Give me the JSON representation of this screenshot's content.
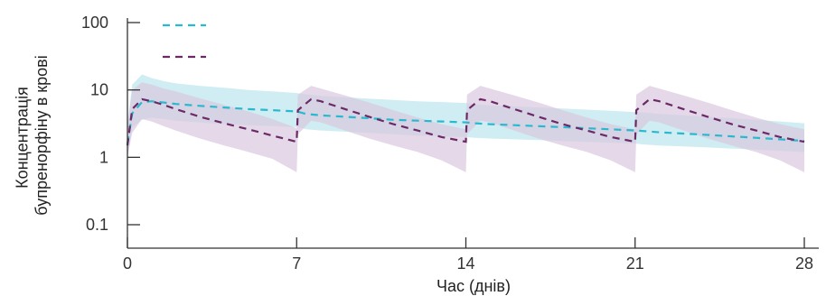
{
  "chart_data": {
    "type": "line",
    "title": "",
    "xlabel": "Час (днів)",
    "ylabel": [
      "Концентрація",
      "бупренорфіну в крові"
    ],
    "xlim": [
      0,
      28
    ],
    "ylim": [
      0.06,
      100
    ],
    "yscale": "log",
    "x_ticks": [
      0,
      7,
      14,
      21,
      28
    ],
    "y_ticks": [
      0.1,
      1,
      10,
      100
    ],
    "y_tick_labels": [
      "0.1",
      "1",
      "10",
      "100"
    ],
    "grid": false,
    "legend": {
      "placement": "top-left",
      "entries_text_shown": false
    },
    "series": [
      {
        "color": "#29b9cf",
        "band_color": "#bfe7ee",
        "style": "dashed",
        "x": [
          0,
          0.2,
          0.6,
          1.0,
          1.5,
          2,
          3,
          4,
          5,
          6,
          7,
          7.4,
          8,
          9,
          10,
          11,
          12,
          13,
          14,
          14.4,
          15,
          16,
          17,
          18,
          19,
          20,
          21,
          21.4,
          22,
          23,
          24,
          25,
          26,
          27,
          28
        ],
        "values": [
          1.6,
          4.5,
          6.6,
          6.8,
          6.5,
          6.2,
          5.8,
          5.5,
          5.2,
          5.0,
          4.8,
          4.4,
          4.2,
          4.0,
          3.8,
          3.6,
          3.5,
          3.4,
          3.3,
          3.2,
          3.1,
          3.0,
          2.9,
          2.8,
          2.7,
          2.6,
          2.5,
          2.45,
          2.35,
          2.25,
          2.15,
          2.05,
          1.95,
          1.85,
          1.75
        ],
        "band_upper": [
          3,
          12,
          17,
          15,
          13.5,
          12.5,
          11.5,
          10.8,
          10,
          9.5,
          9,
          8.6,
          8.2,
          7.8,
          7.4,
          7.1,
          6.8,
          6.6,
          6.4,
          6.1,
          5.9,
          5.7,
          5.5,
          5.3,
          5.1,
          4.9,
          4.7,
          4.6,
          4.4,
          4.2,
          4.0,
          3.8,
          3.6,
          3.4,
          3.2
        ],
        "band_lower": [
          1,
          2.8,
          3.6,
          3.9,
          3.7,
          3.5,
          3.3,
          3.1,
          3.0,
          2.9,
          2.8,
          2.6,
          2.5,
          2.4,
          2.3,
          2.2,
          2.1,
          2.05,
          2.0,
          1.95,
          1.9,
          1.85,
          1.8,
          1.75,
          1.7,
          1.65,
          1.6,
          1.55,
          1.5,
          1.45,
          1.4,
          1.35,
          1.3,
          1.25,
          1.2
        ]
      },
      {
        "color": "#6b2a66",
        "band_color": "#d9c7e0",
        "style": "dashed",
        "x": [
          0,
          0.2,
          0.6,
          1.0,
          1.5,
          2,
          3,
          4,
          5,
          6,
          7,
          7.05,
          7.6,
          8,
          9,
          10,
          11,
          12,
          13,
          14,
          14.05,
          14.6,
          15,
          16,
          17,
          18,
          19,
          20,
          21,
          21.05,
          21.6,
          22,
          23,
          24,
          25,
          26,
          27,
          28
        ],
        "values": [
          1.5,
          5.2,
          7.3,
          6.8,
          6.0,
          5.2,
          4.0,
          3.2,
          2.6,
          2.1,
          1.7,
          5.0,
          7.3,
          6.8,
          5.2,
          4.0,
          3.1,
          2.5,
          2.0,
          1.7,
          5.0,
          7.3,
          6.8,
          5.2,
          4.0,
          3.1,
          2.5,
          2.0,
          1.7,
          5.0,
          7.3,
          6.8,
          5.2,
          4.0,
          3.1,
          2.5,
          2.0,
          1.7
        ],
        "band_upper": [
          3,
          10,
          13,
          12,
          10.5,
          9.5,
          7.5,
          6,
          4.8,
          3.7,
          2.7,
          8.5,
          11.5,
          10.5,
          8.3,
          6.5,
          5,
          3.9,
          3.1,
          2.6,
          8.5,
          11.5,
          10.5,
          8.3,
          6.5,
          5,
          3.9,
          3.1,
          2.6,
          8.5,
          11.5,
          10.5,
          8.3,
          6.5,
          5,
          3.9,
          3.1,
          2.6
        ],
        "band_lower": [
          1,
          2.3,
          3.7,
          3.4,
          2.9,
          2.5,
          1.9,
          1.5,
          1.2,
          0.95,
          0.6,
          2.2,
          3.5,
          3.3,
          2.5,
          1.9,
          1.5,
          1.2,
          0.9,
          0.6,
          2.2,
          3.5,
          3.3,
          2.5,
          1.9,
          1.5,
          1.2,
          0.9,
          0.6,
          2.2,
          3.5,
          3.3,
          2.5,
          1.9,
          1.5,
          1.2,
          0.9,
          0.6
        ]
      }
    ]
  }
}
